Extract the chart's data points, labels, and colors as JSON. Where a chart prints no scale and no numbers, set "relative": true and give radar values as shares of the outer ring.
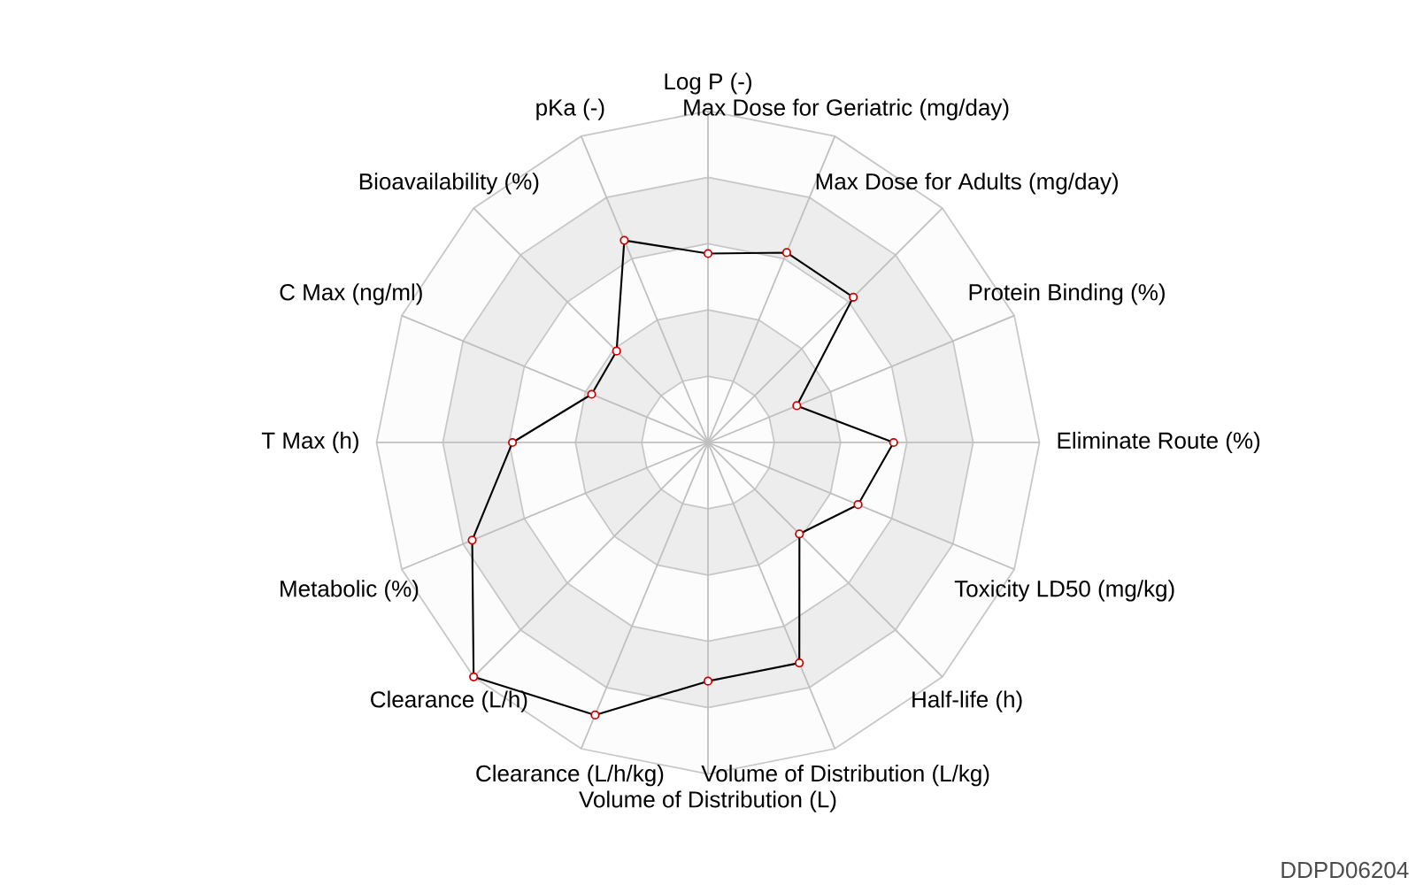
{
  "chart_data": {
    "type": "radar",
    "relative": true,
    "grid": true,
    "marker": "circle",
    "line_style": "solid",
    "categories": [
      "Log P (-)",
      "Max Dose for Geriatric (mg/day)",
      "Max Dose for Adults (mg/day)",
      "Protein Binding (%)",
      "Eliminate Route (%)",
      "Toxicity LD50 (mg/kg)",
      "Half-life (h)",
      "Volume of Distribution (L/kg)",
      "Volume of Distribution (L)",
      "Clearance (L/h/kg)",
      "Clearance (L/h)",
      "Metabolic (%)",
      "T Max (h)",
      "C Max (ng/ml)",
      "Bioavailability (%)",
      "pKa (-)"
    ],
    "series": [
      {
        "color": "#000000",
        "values": [
          0.57,
          0.62,
          0.62,
          0.29,
          0.56,
          0.49,
          0.39,
          0.72,
          0.72,
          0.89,
          1.0,
          0.77,
          0.59,
          0.38,
          0.39,
          0.66
        ]
      }
    ],
    "annotations": [
      "DDPD06204"
    ]
  }
}
